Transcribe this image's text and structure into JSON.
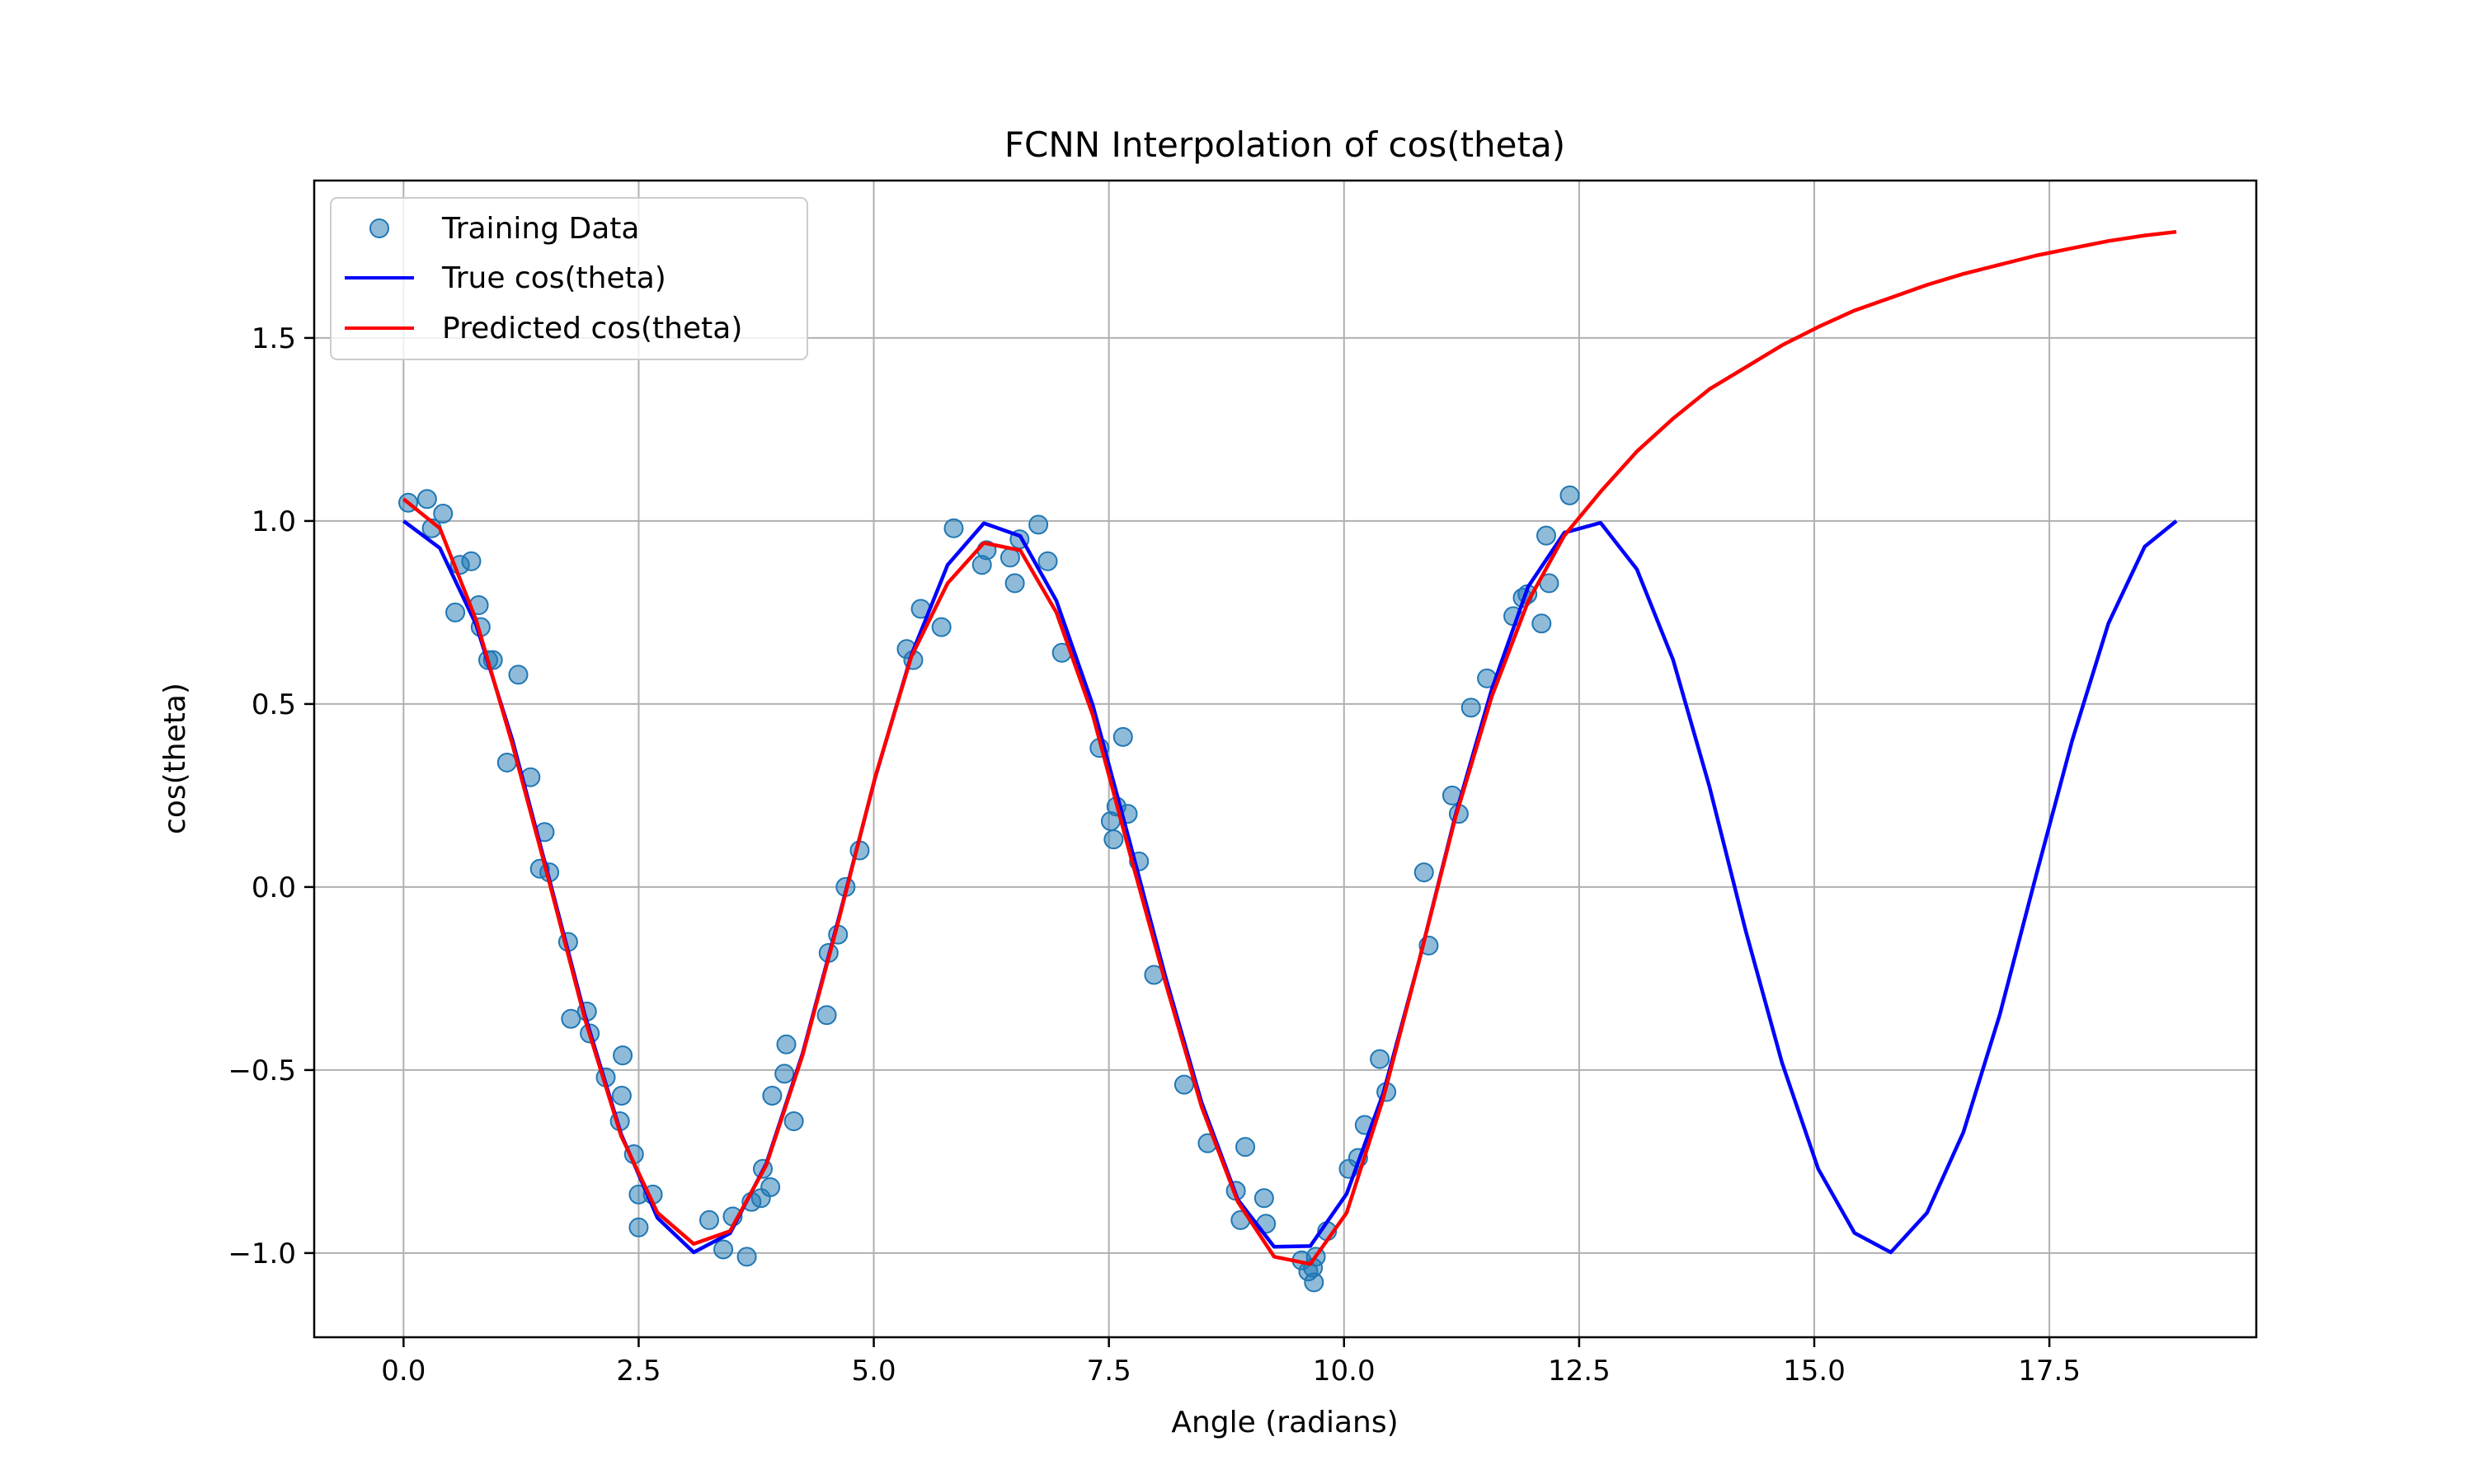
{
  "chart_data": {
    "type": "line",
    "title": "FCNN Interpolation of cos(theta)",
    "xlabel": "Angle (radians)",
    "ylabel": "cos(theta)",
    "xlim": [
      -0.95,
      19.7
    ],
    "ylim": [
      -1.23,
      1.93
    ],
    "xticks": [
      0.0,
      2.5,
      5.0,
      7.5,
      10.0,
      12.5,
      15.0,
      17.5
    ],
    "xtick_labels": [
      "0.0",
      "2.5",
      "5.0",
      "7.5",
      "10.0",
      "12.5",
      "15.0",
      "17.5"
    ],
    "yticks": [
      -1.0,
      -0.5,
      0.0,
      0.5,
      1.0,
      1.5
    ],
    "ytick_labels": [
      "−1.0",
      "−0.5",
      "0.0",
      "0.5",
      "1.0",
      "1.5"
    ],
    "grid": true,
    "legend": "upper-left",
    "colors": {
      "scatter": "#1f77b4",
      "true": "#0000ff",
      "pred": "#ff0000"
    },
    "series": [
      {
        "name": "Training Data",
        "kind": "scatter",
        "points": [
          [
            0.05,
            1.05
          ],
          [
            0.25,
            1.06
          ],
          [
            0.3,
            0.98
          ],
          [
            0.42,
            1.02
          ],
          [
            0.55,
            0.75
          ],
          [
            0.6,
            0.88
          ],
          [
            0.72,
            0.89
          ],
          [
            0.8,
            0.77
          ],
          [
            0.82,
            0.71
          ],
          [
            0.9,
            0.62
          ],
          [
            0.95,
            0.62
          ],
          [
            1.1,
            0.34
          ],
          [
            1.22,
            0.58
          ],
          [
            1.35,
            0.3
          ],
          [
            1.45,
            0.05
          ],
          [
            1.5,
            0.15
          ],
          [
            1.55,
            0.04
          ],
          [
            1.75,
            -0.15
          ],
          [
            1.78,
            -0.36
          ],
          [
            1.95,
            -0.34
          ],
          [
            1.98,
            -0.4
          ],
          [
            2.15,
            -0.52
          ],
          [
            2.3,
            -0.64
          ],
          [
            2.32,
            -0.57
          ],
          [
            2.33,
            -0.46
          ],
          [
            2.45,
            -0.73
          ],
          [
            2.5,
            -0.84
          ],
          [
            2.5,
            -0.93
          ],
          [
            2.65,
            -0.84
          ],
          [
            3.25,
            -0.91
          ],
          [
            3.4,
            -0.99
          ],
          [
            3.5,
            -0.9
          ],
          [
            3.65,
            -1.01
          ],
          [
            3.7,
            -0.86
          ],
          [
            3.8,
            -0.85
          ],
          [
            3.82,
            -0.77
          ],
          [
            3.9,
            -0.82
          ],
          [
            3.92,
            -0.57
          ],
          [
            4.05,
            -0.51
          ],
          [
            4.07,
            -0.43
          ],
          [
            4.15,
            -0.64
          ],
          [
            4.5,
            -0.35
          ],
          [
            4.52,
            -0.18
          ],
          [
            4.62,
            -0.13
          ],
          [
            4.7,
            0.0
          ],
          [
            4.85,
            0.1
          ],
          [
            5.35,
            0.65
          ],
          [
            5.42,
            0.62
          ],
          [
            5.5,
            0.76
          ],
          [
            5.72,
            0.71
          ],
          [
            5.85,
            0.98
          ],
          [
            6.15,
            0.88
          ],
          [
            6.2,
            0.92
          ],
          [
            6.45,
            0.9
          ],
          [
            6.5,
            0.83
          ],
          [
            6.55,
            0.95
          ],
          [
            6.75,
            0.99
          ],
          [
            6.85,
            0.89
          ],
          [
            7.0,
            0.64
          ],
          [
            7.4,
            0.38
          ],
          [
            7.52,
            0.18
          ],
          [
            7.55,
            0.13
          ],
          [
            7.58,
            0.22
          ],
          [
            7.65,
            0.41
          ],
          [
            7.7,
            0.2
          ],
          [
            7.82,
            0.07
          ],
          [
            7.98,
            -0.24
          ],
          [
            8.3,
            -0.54
          ],
          [
            8.55,
            -0.7
          ],
          [
            8.85,
            -0.83
          ],
          [
            8.9,
            -0.91
          ],
          [
            8.95,
            -0.71
          ],
          [
            9.15,
            -0.85
          ],
          [
            9.17,
            -0.92
          ],
          [
            9.55,
            -1.02
          ],
          [
            9.62,
            -1.05
          ],
          [
            9.67,
            -1.04
          ],
          [
            9.68,
            -1.08
          ],
          [
            9.7,
            -1.01
          ],
          [
            9.82,
            -0.94
          ],
          [
            10.05,
            -0.77
          ],
          [
            10.15,
            -0.74
          ],
          [
            10.22,
            -0.65
          ],
          [
            10.38,
            -0.47
          ],
          [
            10.45,
            -0.56
          ],
          [
            10.85,
            0.04
          ],
          [
            10.9,
            -0.16
          ],
          [
            11.15,
            0.25
          ],
          [
            11.22,
            0.2
          ],
          [
            11.35,
            0.49
          ],
          [
            11.52,
            0.57
          ],
          [
            11.8,
            0.74
          ],
          [
            11.9,
            0.79
          ],
          [
            11.95,
            0.8
          ],
          [
            12.1,
            0.72
          ],
          [
            12.15,
            0.96
          ],
          [
            12.18,
            0.83
          ],
          [
            12.4,
            1.07
          ]
        ]
      },
      {
        "name": "True cos(theta)",
        "kind": "line",
        "points": [
          [
            0.0,
            1.0
          ],
          [
            0.386,
            0.926
          ],
          [
            0.771,
            0.717
          ],
          [
            1.157,
            0.402
          ],
          [
            1.543,
            0.028
          ],
          [
            1.928,
            -0.35
          ],
          [
            2.314,
            -0.675
          ],
          [
            2.7,
            -0.904
          ],
          [
            3.085,
            -0.998
          ],
          [
            3.471,
            -0.946
          ],
          [
            3.857,
            -0.756
          ],
          [
            4.243,
            -0.455
          ],
          [
            4.628,
            -0.085
          ],
          [
            5.014,
            0.298
          ],
          [
            5.4,
            0.634
          ],
          [
            5.785,
            0.88
          ],
          [
            6.171,
            0.994
          ],
          [
            6.557,
            0.959
          ],
          [
            6.942,
            0.782
          ],
          [
            7.328,
            0.497
          ],
          [
            7.714,
            0.13
          ],
          [
            8.1,
            -0.244
          ],
          [
            8.485,
            -0.588
          ],
          [
            8.871,
            -0.854
          ],
          [
            9.257,
            -0.983
          ],
          [
            9.642,
            -0.981
          ],
          [
            10.028,
            -0.838
          ],
          [
            10.414,
            -0.566
          ],
          [
            10.8,
            -0.2
          ],
          [
            11.185,
            0.196
          ],
          [
            11.571,
            0.54
          ],
          [
            11.957,
            0.82
          ],
          [
            12.342,
            0.968
          ],
          [
            12.728,
            0.995
          ],
          [
            13.114,
            0.868
          ],
          [
            13.5,
            0.62
          ],
          [
            13.885,
            0.275
          ],
          [
            14.271,
            -0.12
          ],
          [
            14.657,
            -0.48
          ],
          [
            15.042,
            -0.77
          ],
          [
            15.428,
            -0.945
          ],
          [
            15.814,
            -0.998
          ],
          [
            16.2,
            -0.89
          ],
          [
            16.585,
            -0.67
          ],
          [
            16.971,
            -0.35
          ],
          [
            17.357,
            0.03
          ],
          [
            17.742,
            0.4
          ],
          [
            18.128,
            0.72
          ],
          [
            18.514,
            0.93
          ],
          [
            18.85,
            1.0
          ]
        ]
      },
      {
        "name": "Predicted cos(theta)",
        "kind": "line",
        "points": [
          [
            0.0,
            1.06
          ],
          [
            0.386,
            0.98
          ],
          [
            0.771,
            0.73
          ],
          [
            1.157,
            0.39
          ],
          [
            1.543,
            0.02
          ],
          [
            1.928,
            -0.36
          ],
          [
            2.314,
            -0.68
          ],
          [
            2.7,
            -0.89
          ],
          [
            3.085,
            -0.975
          ],
          [
            3.471,
            -0.94
          ],
          [
            3.857,
            -0.76
          ],
          [
            4.243,
            -0.46
          ],
          [
            4.628,
            -0.09
          ],
          [
            5.014,
            0.3
          ],
          [
            5.4,
            0.63
          ],
          [
            5.785,
            0.83
          ],
          [
            6.171,
            0.94
          ],
          [
            6.557,
            0.92
          ],
          [
            6.942,
            0.75
          ],
          [
            7.328,
            0.47
          ],
          [
            7.714,
            0.1
          ],
          [
            8.1,
            -0.26
          ],
          [
            8.485,
            -0.6
          ],
          [
            8.871,
            -0.86
          ],
          [
            9.257,
            -1.01
          ],
          [
            9.642,
            -1.03
          ],
          [
            10.028,
            -0.89
          ],
          [
            10.414,
            -0.58
          ],
          [
            10.8,
            -0.2
          ],
          [
            11.185,
            0.19
          ],
          [
            11.571,
            0.52
          ],
          [
            11.957,
            0.78
          ],
          [
            12.342,
            0.96
          ],
          [
            12.728,
            1.08
          ],
          [
            13.114,
            1.19
          ],
          [
            13.5,
            1.28
          ],
          [
            13.885,
            1.36
          ],
          [
            14.271,
            1.42
          ],
          [
            14.657,
            1.48
          ],
          [
            15.042,
            1.53
          ],
          [
            15.428,
            1.575
          ],
          [
            15.814,
            1.61
          ],
          [
            16.2,
            1.645
          ],
          [
            16.585,
            1.675
          ],
          [
            16.971,
            1.7
          ],
          [
            17.357,
            1.725
          ],
          [
            17.742,
            1.745
          ],
          [
            18.128,
            1.765
          ],
          [
            18.514,
            1.78
          ],
          [
            18.85,
            1.79
          ]
        ]
      }
    ]
  }
}
